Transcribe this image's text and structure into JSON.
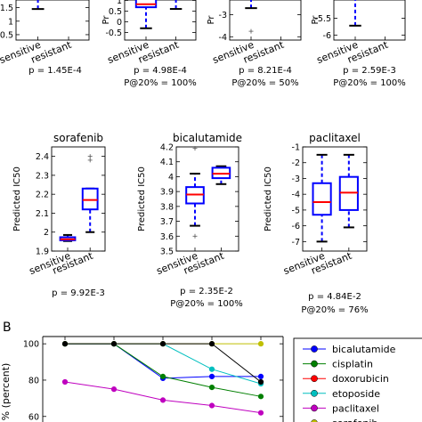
{
  "panel_b_label": "B",
  "chart_data": [
    {
      "type": "box",
      "panel": "top-1",
      "ylabel": "Pr",
      "categories": [
        "sensitive",
        "resistant"
      ],
      "y_ticks": [
        0.5,
        1.0,
        1.5
      ],
      "ylim": [
        0.3,
        1.85
      ],
      "boxes": [
        {
          "whisker_low": 1.45,
          "whisker_high": 1.85,
          "outliers": []
        }
      ],
      "p_text": "p = 1.45E-4",
      "p20_text": ""
    },
    {
      "type": "box",
      "panel": "top-2",
      "ylabel": "Pr",
      "categories": [
        "sensitive",
        "resistant"
      ],
      "y_ticks": [
        -0.5,
        0.0,
        0.5,
        1.0
      ],
      "ylim": [
        -0.85,
        1.1
      ],
      "boxes": [
        {
          "whisker_low": -0.3,
          "q1": 0.68,
          "median": 0.82,
          "q3": 1.1,
          "whisker_high": 1.1,
          "outliers": []
        },
        {
          "whisker_low": 0.6,
          "whisker_high": 1.1,
          "outliers": []
        }
      ],
      "p_text": "p = 4.98E-4",
      "p20_text": "P@20% = 100%"
    },
    {
      "type": "box",
      "panel": "top-3",
      "ylabel": "Pr",
      "categories": [
        "sensitive",
        "resistant"
      ],
      "y_ticks": [
        -4,
        -3
      ],
      "ylim": [
        -4.15,
        -2.25
      ],
      "boxes": [
        {
          "whisker_low": -2.7,
          "whisker_high": -2.25,
          "outliers": [
            -3.75
          ]
        }
      ],
      "p_text": "p = 8.21E-4",
      "p20_text": "P@20% = 50%"
    },
    {
      "type": "box",
      "panel": "top-4",
      "ylabel": "Pr",
      "categories": [
        "sensitive",
        "resistant"
      ],
      "y_ticks": [
        -6.0,
        -5.5
      ],
      "ylim": [
        -6.15,
        -4.9
      ],
      "boxes": [
        {
          "whisker_low": -5.72,
          "whisker_high": -4.9,
          "outliers": []
        }
      ],
      "p_text": "p = 2.59E-3",
      "p20_text": "P@20% = 100%"
    },
    {
      "type": "box",
      "panel": "sorafenib",
      "title": "sorafenib",
      "ylabel": "Predicted IC50",
      "categories": [
        "sensitive",
        "resistant"
      ],
      "y_ticks": [
        1.9,
        2.0,
        2.1,
        2.2,
        2.3,
        2.4
      ],
      "ylim": [
        1.9,
        2.45
      ],
      "boxes": [
        {
          "whisker_low": 1.953,
          "q1": 1.957,
          "median": 1.962,
          "q3": 1.973,
          "whisker_high": 1.985,
          "outliers": []
        },
        {
          "whisker_low": 2.0,
          "q1": 2.12,
          "median": 2.17,
          "q3": 2.23,
          "whisker_high": 2.23,
          "outliers": [
            2.38,
            2.4
          ]
        }
      ],
      "p_text": "p = 9.92E-3",
      "p20_text": ""
    },
    {
      "type": "box",
      "panel": "bicalutamide",
      "title": "bicalutamide",
      "ylabel": "Predicted IC50",
      "categories": [
        "sensitive",
        "resistant"
      ],
      "y_ticks": [
        3.5,
        3.6,
        3.7,
        3.8,
        3.9,
        4.0,
        4.1,
        4.2
      ],
      "ylim": [
        3.5,
        4.2
      ],
      "boxes": [
        {
          "whisker_low": 3.67,
          "q1": 3.82,
          "median": 3.88,
          "q3": 3.93,
          "whisker_high": 4.02,
          "outliers": [
            3.6,
            4.19
          ]
        },
        {
          "whisker_low": 3.95,
          "q1": 3.99,
          "median": 4.02,
          "q3": 4.06,
          "whisker_high": 4.07,
          "outliers": []
        }
      ],
      "p_text": "p = 2.35E-2",
      "p20_text": "P@20% = 100%"
    },
    {
      "type": "box",
      "panel": "paclitaxel",
      "title": "paclitaxel",
      "ylabel": "Predicted IC50",
      "categories": [
        "sensitive",
        "resistant"
      ],
      "y_ticks": [
        -7,
        -6,
        -5,
        -4,
        -3,
        -2,
        -1
      ],
      "ylim": [
        -7.6,
        -1.0
      ],
      "boxes": [
        {
          "whisker_low": -7.0,
          "q1": -5.3,
          "median": -4.5,
          "q3": -3.3,
          "whisker_high": -1.5,
          "outliers": []
        },
        {
          "whisker_low": -6.1,
          "q1": -5.0,
          "median": -3.9,
          "q3": -2.9,
          "whisker_high": -1.5,
          "outliers": []
        }
      ],
      "p_text": "p = 4.84E-2",
      "p20_text": "P@20% = 76%"
    },
    {
      "type": "line",
      "panel": "B",
      "ylabel": "% (percent)",
      "x": [
        1,
        2,
        3,
        4,
        5
      ],
      "y_ticks": [
        60,
        80,
        100
      ],
      "ylim": [
        54,
        104
      ],
      "legend": "right",
      "series": [
        {
          "name": "bicalutamide",
          "color": "#0000ff",
          "values": [
            100,
            100,
            81,
            82,
            82
          ]
        },
        {
          "name": "cisplatin",
          "color": "#007f00",
          "values": [
            100,
            100,
            82,
            76,
            71
          ]
        },
        {
          "name": "doxorubicin",
          "color": "#ff0000",
          "values": [
            null,
            null,
            null,
            null,
            null
          ]
        },
        {
          "name": "etoposide",
          "color": "#00bfbf",
          "values": [
            100,
            100,
            100,
            86,
            78
          ]
        },
        {
          "name": "paclitaxel",
          "color": "#bf00bf",
          "values": [
            79,
            75,
            69,
            66,
            62
          ]
        },
        {
          "name": "sorafenib",
          "color": "#bfbf00",
          "values": [
            100,
            100,
            100,
            100,
            100
          ]
        },
        {
          "name": "",
          "color": "#000000",
          "values": [
            100,
            100,
            100,
            100,
            79
          ]
        }
      ]
    }
  ]
}
